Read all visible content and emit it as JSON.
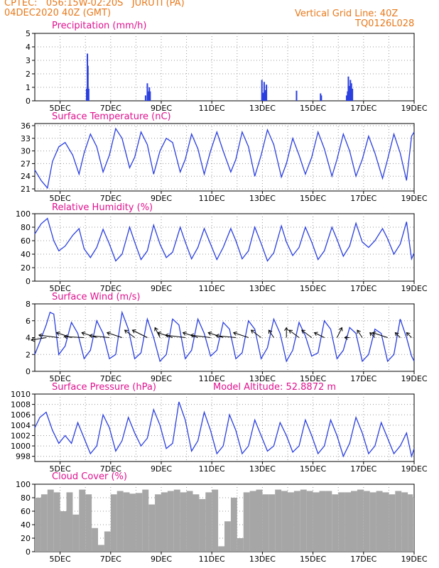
{
  "header": {
    "line1": "CPTEC:   056:15W-02:20S   JURUTI (PA)",
    "line2": "04DEC2020 40Z (GMT)",
    "grid_note": "Vertical Grid Line: 40Z",
    "code": "TQ0126L028"
  },
  "panel_titles": [
    "Precipitation (mm/h)",
    "Surface Temperature (nC)",
    "Relative Humidity (%)",
    "Surface Wind (m/s)",
    "Surface Pressure (hPa)",
    "Cloud Cover (%)"
  ],
  "model_altitude": "Model Altitude: 52.8872 m",
  "x_tick_labels": [
    "5DEC",
    "7DEC",
    "9DEC",
    "11DEC",
    "13DEC",
    "15DEC",
    "17DEC",
    "19DEC"
  ],
  "colors": {
    "header": "#e8791b",
    "title": "#e0128f",
    "line": "#2a3fe0",
    "cloud": "#a6a6a6",
    "grid": "#9a9a9a"
  },
  "chart_data": [
    {
      "type": "bar",
      "title": "Precipitation (mm/h)",
      "ylim": [
        0,
        5
      ],
      "y_ticks": [
        "0",
        "1",
        "2",
        "3",
        "4",
        "5"
      ],
      "xlim_days": [
        4.0,
        19.0
      ],
      "grid": true,
      "x_days": [
        6.05,
        6.08,
        6.1,
        6.13,
        8.38,
        8.45,
        8.5,
        8.53,
        8.56,
        12.98,
        13.03,
        13.07,
        13.1,
        13.13,
        13.16,
        14.35,
        15.3,
        15.33,
        16.33,
        16.37,
        16.4,
        16.45,
        16.48,
        16.52,
        16.56
      ],
      "values": [
        0.9,
        3.5,
        2.6,
        0.9,
        0.4,
        1.3,
        0.7,
        1.0,
        0.7,
        1.55,
        0.6,
        1.4,
        0.65,
        0.8,
        1.2,
        0.75,
        0.55,
        0.4,
        0.4,
        0.7,
        1.8,
        1.1,
        1.55,
        1.3,
        0.9
      ]
    },
    {
      "type": "line",
      "title": "Surface Temperature (nC)",
      "ylim": [
        20.5,
        36.5
      ],
      "y_ticks": [
        "21",
        "24",
        "27",
        "30",
        "33",
        "36"
      ],
      "xlim_days": [
        4.0,
        19.0
      ],
      "grid": true,
      "x_days": [
        4.0,
        4.25,
        4.5,
        4.7,
        4.95,
        5.2,
        5.5,
        5.75,
        5.95,
        6.2,
        6.45,
        6.7,
        6.95,
        7.2,
        7.45,
        7.75,
        7.95,
        8.2,
        8.45,
        8.7,
        8.95,
        9.2,
        9.45,
        9.75,
        9.95,
        10.2,
        10.45,
        10.7,
        10.95,
        11.2,
        11.45,
        11.75,
        11.95,
        12.2,
        12.45,
        12.7,
        12.95,
        13.2,
        13.45,
        13.75,
        13.95,
        14.2,
        14.45,
        14.7,
        14.95,
        15.2,
        15.45,
        15.75,
        15.95,
        16.2,
        16.45,
        16.7,
        16.95,
        17.2,
        17.45,
        17.75,
        17.95,
        18.2,
        18.45,
        18.7,
        18.9,
        19.0
      ],
      "values": [
        25.5,
        23.0,
        21.2,
        27.5,
        31.0,
        32.0,
        29.0,
        24.5,
        29.5,
        34.0,
        31.0,
        25.0,
        29.0,
        35.3,
        33.0,
        26.0,
        28.5,
        34.5,
        31.5,
        24.5,
        30.0,
        33.0,
        32.0,
        25.0,
        28.0,
        34.0,
        30.5,
        24.5,
        30.0,
        34.5,
        30.0,
        25.0,
        28.0,
        34.5,
        31.0,
        24.0,
        29.0,
        35.0,
        31.5,
        23.8,
        27.0,
        33.0,
        29.0,
        24.5,
        28.5,
        34.5,
        30.5,
        24.0,
        28.0,
        34.0,
        30.0,
        24.0,
        28.0,
        33.5,
        29.5,
        23.5,
        28.0,
        34.0,
        29.5,
        23.0,
        33.5,
        34.5
      ]
    },
    {
      "type": "line",
      "title": "Relative Humidity (%)",
      "ylim": [
        0,
        100
      ],
      "y_ticks": [
        "0",
        "20",
        "40",
        "60",
        "80",
        "100"
      ],
      "xlim_days": [
        4.0,
        19.0
      ],
      "grid": true,
      "x_days": [
        4.0,
        4.25,
        4.5,
        4.75,
        4.95,
        5.2,
        5.5,
        5.75,
        5.95,
        6.2,
        6.45,
        6.7,
        6.95,
        7.2,
        7.45,
        7.75,
        7.95,
        8.2,
        8.45,
        8.7,
        8.95,
        9.2,
        9.45,
        9.75,
        9.95,
        10.2,
        10.45,
        10.7,
        10.95,
        11.2,
        11.45,
        11.75,
        11.95,
        12.2,
        12.45,
        12.7,
        12.95,
        13.2,
        13.45,
        13.75,
        13.95,
        14.2,
        14.45,
        14.7,
        14.95,
        15.2,
        15.45,
        15.75,
        15.95,
        16.2,
        16.45,
        16.7,
        16.95,
        17.2,
        17.45,
        17.75,
        17.95,
        18.2,
        18.45,
        18.7,
        18.9,
        19.0
      ],
      "values": [
        70,
        85,
        93,
        60,
        45,
        52,
        68,
        78,
        48,
        35,
        50,
        77,
        55,
        30,
        40,
        80,
        58,
        32,
        45,
        83,
        55,
        35,
        43,
        80,
        58,
        33,
        50,
        78,
        55,
        32,
        50,
        78,
        60,
        33,
        45,
        80,
        56,
        30,
        42,
        82,
        58,
        38,
        50,
        80,
        58,
        32,
        45,
        80,
        62,
        37,
        52,
        86,
        58,
        50,
        60,
        78,
        63,
        40,
        55,
        88,
        33,
        42
      ]
    },
    {
      "type": "line",
      "title": "Surface Wind (m/s)",
      "ylim": [
        0,
        8
      ],
      "y_ticks": [
        "0",
        "2",
        "4",
        "6",
        "8"
      ],
      "xlim_days": [
        4.0,
        19.0
      ],
      "grid": true,
      "x_days": [
        4.0,
        4.2,
        4.45,
        4.6,
        4.75,
        4.95,
        5.2,
        5.45,
        5.7,
        5.95,
        6.2,
        6.45,
        6.7,
        6.95,
        7.2,
        7.45,
        7.7,
        7.95,
        8.2,
        8.45,
        8.7,
        8.95,
        9.2,
        9.45,
        9.7,
        9.95,
        10.2,
        10.45,
        10.7,
        10.95,
        11.2,
        11.45,
        11.7,
        11.95,
        12.2,
        12.45,
        12.7,
        12.95,
        13.2,
        13.45,
        13.7,
        13.95,
        14.2,
        14.45,
        14.7,
        14.95,
        15.2,
        15.45,
        15.7,
        15.95,
        16.2,
        16.45,
        16.7,
        16.95,
        17.2,
        17.45,
        17.7,
        17.95,
        18.2,
        18.45,
        18.7,
        18.9,
        19.0
      ],
      "values": [
        2.0,
        3.5,
        5.5,
        7.0,
        6.8,
        2.0,
        3.0,
        5.8,
        4.5,
        1.5,
        2.5,
        6.0,
        4.5,
        1.5,
        2.0,
        7.0,
        5.0,
        1.5,
        2.2,
        6.2,
        4.0,
        1.2,
        2.0,
        6.2,
        5.5,
        1.5,
        2.5,
        6.2,
        4.5,
        1.8,
        2.5,
        5.8,
        5.0,
        1.5,
        2.2,
        6.0,
        5.0,
        1.5,
        2.8,
        6.2,
        4.5,
        1.2,
        2.5,
        5.8,
        4.2,
        1.8,
        2.2,
        6.0,
        5.0,
        1.5,
        2.5,
        5.2,
        4.5,
        1.2,
        2.0,
        5.0,
        4.5,
        1.2,
        2.0,
        6.2,
        4.0,
        1.8,
        1.2
      ],
      "wind_vectors": {
        "x_days": [
          4.45,
          4.95,
          5.45,
          5.95,
          6.45,
          6.95,
          7.45,
          7.95,
          8.45,
          8.95,
          9.45,
          9.95,
          10.45,
          10.95,
          11.45,
          11.95,
          12.45,
          12.95,
          13.45,
          13.95,
          14.45,
          14.95,
          15.45,
          15.95,
          16.45,
          16.95,
          17.45,
          17.95,
          18.45,
          18.9
        ],
        "u": [
          -3.0,
          -4.0,
          -3.0,
          -4.0,
          -3.0,
          -4.0,
          -3.0,
          -2.0,
          -3.0,
          -1.0,
          -3.0,
          -4.0,
          -3.0,
          -4.0,
          -3.0,
          -4.0,
          -3.0,
          -2.0,
          -1.0,
          0.0,
          -2.0,
          -2.0,
          -2.0,
          1.0,
          -1.0,
          -1.0,
          -1.0,
          -3.0,
          -1.0,
          -1.0
        ],
        "v": [
          -0.5,
          0.5,
          1.0,
          0.2,
          1.0,
          0.4,
          1.0,
          1.5,
          1.5,
          2.0,
          1.0,
          0.5,
          1.0,
          0.5,
          1.0,
          0.4,
          1.0,
          1.5,
          1.5,
          2.0,
          1.5,
          1.5,
          1.0,
          2.0,
          0.0,
          1.5,
          1.0,
          1.0,
          1.0,
          1.0
        ]
      }
    },
    {
      "type": "line",
      "title": "Surface Pressure (hPa)",
      "ylim": [
        997,
        1010
      ],
      "y_ticks": [
        "998",
        "1000",
        "1002",
        "1004",
        "1006",
        "1008",
        "1010"
      ],
      "xlim_days": [
        4.0,
        19.0
      ],
      "grid": true,
      "x_days": [
        4.0,
        4.2,
        4.45,
        4.7,
        4.95,
        5.2,
        5.45,
        5.7,
        5.95,
        6.2,
        6.45,
        6.7,
        6.95,
        7.2,
        7.45,
        7.7,
        7.95,
        8.2,
        8.45,
        8.7,
        8.95,
        9.2,
        9.45,
        9.7,
        9.95,
        10.2,
        10.45,
        10.7,
        10.95,
        11.2,
        11.45,
        11.7,
        11.95,
        12.2,
        12.45,
        12.7,
        12.95,
        13.2,
        13.45,
        13.7,
        13.95,
        14.2,
        14.45,
        14.7,
        14.95,
        15.2,
        15.45,
        15.7,
        15.95,
        16.2,
        16.45,
        16.7,
        16.95,
        17.2,
        17.45,
        17.7,
        17.95,
        18.2,
        18.45,
        18.7,
        18.9,
        19.0
      ],
      "values": [
        1003.5,
        1005.5,
        1006.5,
        1003.0,
        1000.5,
        1002.0,
        1000.5,
        1004.5,
        1001.5,
        998.5,
        1000.0,
        1006.0,
        1003.5,
        999.0,
        1001.0,
        1005.5,
        1002.5,
        1000.0,
        1001.5,
        1007.0,
        1004.0,
        999.5,
        1000.5,
        1008.5,
        1005.0,
        999.0,
        1001.0,
        1006.5,
        1003.0,
        998.5,
        1000.0,
        1006.0,
        1003.0,
        998.5,
        1000.0,
        1005.0,
        1002.0,
        999.0,
        1000.0,
        1004.5,
        1002.0,
        998.8,
        1000.0,
        1005.0,
        1002.0,
        998.5,
        1000.0,
        1005.0,
        1002.0,
        998.0,
        1000.5,
        1005.5,
        1002.5,
        998.5,
        1000.0,
        1004.5,
        1001.5,
        998.5,
        1000.0,
        1002.5,
        998.0,
        999.5
      ]
    },
    {
      "type": "bar",
      "title": "Cloud Cover (%)",
      "ylim": [
        0,
        100
      ],
      "y_ticks": [
        "0",
        "20",
        "40",
        "60",
        "80",
        "100"
      ],
      "xlim_days": [
        4.0,
        19.0
      ],
      "grid": true,
      "x_days": [
        4.0,
        4.25,
        4.5,
        4.75,
        5.0,
        5.25,
        5.5,
        5.75,
        6.0,
        6.25,
        6.5,
        6.75,
        7.0,
        7.25,
        7.5,
        7.75,
        8.0,
        8.25,
        8.5,
        8.75,
        9.0,
        9.25,
        9.5,
        9.75,
        10.0,
        10.25,
        10.5,
        10.75,
        11.0,
        11.25,
        11.5,
        11.75,
        12.0,
        12.25,
        12.5,
        12.75,
        13.0,
        13.25,
        13.5,
        13.75,
        14.0,
        14.25,
        14.5,
        14.75,
        15.0,
        15.25,
        15.5,
        15.75,
        16.0,
        16.25,
        16.5,
        16.75,
        17.0,
        17.25,
        17.5,
        17.75,
        18.0,
        18.25,
        18.5,
        18.75,
        18.95
      ],
      "values": [
        80,
        85,
        92,
        88,
        60,
        88,
        55,
        92,
        85,
        35,
        10,
        30,
        85,
        90,
        88,
        86,
        87,
        92,
        70,
        85,
        88,
        90,
        92,
        88,
        90,
        85,
        78,
        88,
        92,
        8,
        45,
        80,
        20,
        88,
        90,
        92,
        85,
        85,
        92,
        90,
        88,
        90,
        92,
        90,
        88,
        90,
        90,
        85,
        88,
        88,
        90,
        92,
        90,
        88,
        90,
        88,
        85,
        90,
        88,
        85,
        80
      ]
    }
  ]
}
